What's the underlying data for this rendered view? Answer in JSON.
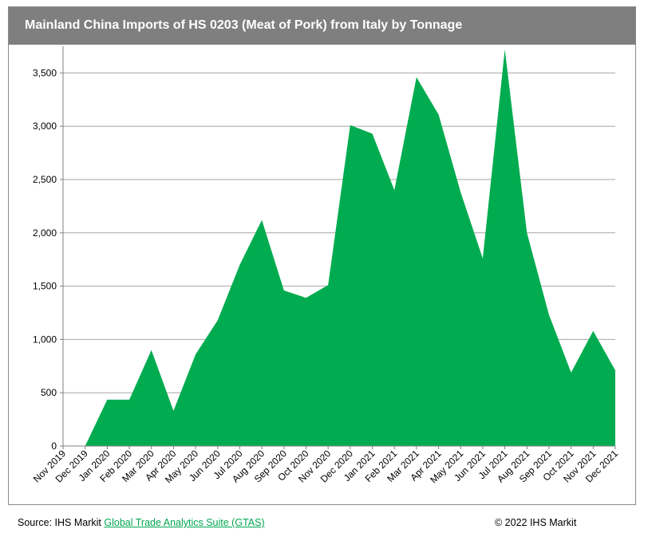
{
  "title": "Mainland China Imports of HS 0203 (Meat of Pork) from Italy by Tonnage",
  "footer": {
    "source_prefix": "Source: IHS Markit ",
    "source_link": "Global Trade Analytics Suite (GTAS)",
    "copyright": "© 2022 IHS Markit"
  },
  "colors": {
    "area": "#00ac4f",
    "header": "#7f7f7f",
    "grid": "#a6a6a6",
    "link": "#00a651"
  },
  "chart_data": {
    "type": "area",
    "title": "Mainland China Imports of HS 0203 (Meat of Pork) from Italy by Tonnage",
    "xlabel": "",
    "ylabel": "",
    "ylim": [
      0,
      3750
    ],
    "yticks": [
      0,
      500,
      1000,
      1500,
      2000,
      2500,
      3000,
      3500
    ],
    "ytick_labels": [
      "0",
      "500",
      "1,000",
      "1,500",
      "2,000",
      "2,500",
      "3,000",
      "3,500"
    ],
    "grid": true,
    "legend": "none",
    "categories": [
      "Nov 2019",
      "Dec 2019",
      "Jan 2020",
      "Feb 2020",
      "Mar 2020",
      "Apr 2020",
      "May 2020",
      "Jun 2020",
      "Jul 2020",
      "Aug 2020",
      "Sep 2020",
      "Oct 2020",
      "Nov 2020",
      "Dec 2020",
      "Jan 2021",
      "Feb 2021",
      "Mar 2021",
      "Apr 2021",
      "May 2021",
      "Jun 2021",
      "Jul 2021",
      "Aug 2021",
      "Sep 2021",
      "Oct 2021",
      "Nov 2021",
      "Dec 2021"
    ],
    "series": [
      {
        "values": [
          0,
          0,
          435,
          435,
          900,
          330,
          860,
          1180,
          1700,
          2120,
          1460,
          1390,
          1510,
          3010,
          2930,
          2400,
          3460,
          3110,
          2380,
          1760,
          3720,
          2000,
          1230,
          690,
          1080,
          710
        ]
      }
    ]
  }
}
